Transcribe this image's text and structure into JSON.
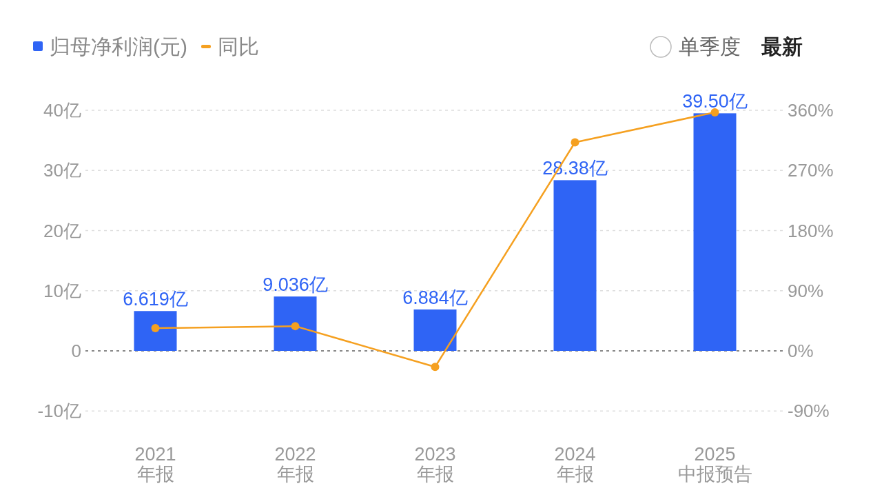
{
  "chart_data": {
    "type": "bar",
    "categories": [
      "2021\n年报",
      "2022\n年报",
      "2023\n年报",
      "2024\n年报",
      "2025\n中报预告"
    ],
    "series": [
      {
        "name": "归母净利润(元)",
        "color": "#2f64f5",
        "values": [
          6.619,
          9.036,
          6.884,
          28.38,
          39.5
        ],
        "value_labels": [
          "6.619亿",
          "9.036亿",
          "6.884亿",
          "28.38亿",
          "39.50亿"
        ]
      },
      {
        "name": "同比",
        "type": "line",
        "axis": "y2",
        "color": "#f5a020",
        "marker": "circle",
        "values": [
          34,
          37,
          -24,
          312,
          357
        ]
      }
    ],
    "ylim": [
      -10,
      40
    ],
    "yticks": [
      {
        "value": -10,
        "label": "-10亿"
      },
      0,
      {
        "value": 10,
        "label": "10亿"
      },
      {
        "value": 20,
        "label": "20亿"
      },
      {
        "value": 30,
        "label": "30亿"
      },
      {
        "value": 40,
        "label": "40亿"
      }
    ],
    "y2lim": [
      -90,
      360
    ],
    "y2ticks": [
      {
        "value": -90,
        "label": "-90%"
      },
      {
        "value": 0,
        "label": "0%"
      },
      {
        "value": 90,
        "label": "90%"
      },
      {
        "value": 180,
        "label": "180%"
      },
      {
        "value": 270,
        "label": "270%"
      },
      {
        "value": 360,
        "label": "360%"
      }
    ],
    "grid": "y",
    "legend": "top left",
    "ref_lines": [
      {
        "axis": "y",
        "value": 0,
        "color": "#888888",
        "line_style": "dashed"
      }
    ],
    "annotations": [
      "单季度",
      "最新"
    ]
  }
}
